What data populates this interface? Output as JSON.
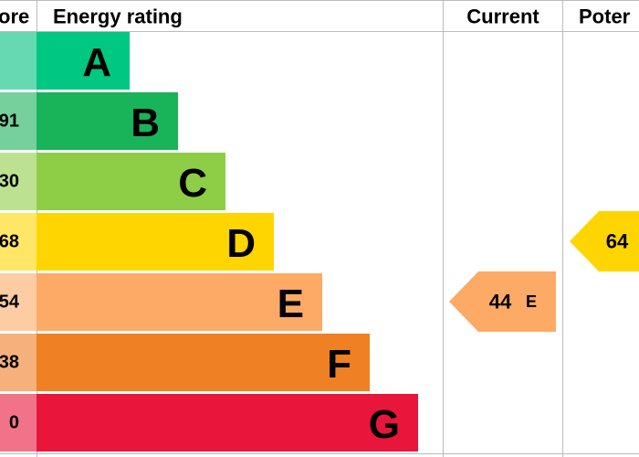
{
  "header": {
    "score": "ore",
    "rating": "Energy rating",
    "current": "Current",
    "potential": "Poter"
  },
  "rows": [
    {
      "score": null,
      "band": "A",
      "color": "#00c781",
      "light": "#66d9b3"
    },
    {
      "score": "91",
      "band": "B",
      "color": "#19b459",
      "light": "#75d09b"
    },
    {
      "score": "30",
      "band": "C",
      "color": "#8dce46",
      "light": "#bce291"
    },
    {
      "score": "68",
      "band": "D",
      "color": "#ffd500",
      "light": "#ffe666"
    },
    {
      "score": "54",
      "band": "E",
      "color": "#fcaa65",
      "light": "#fdcca3"
    },
    {
      "score": "38",
      "band": "F",
      "color": "#ef8023",
      "light": "#f5b07b"
    },
    {
      "score": "0",
      "band": "G",
      "color": "#e9153b",
      "light": "#f27389"
    }
  ],
  "current": {
    "value": "44",
    "band": "E"
  },
  "potential": {
    "value": "64"
  }
}
